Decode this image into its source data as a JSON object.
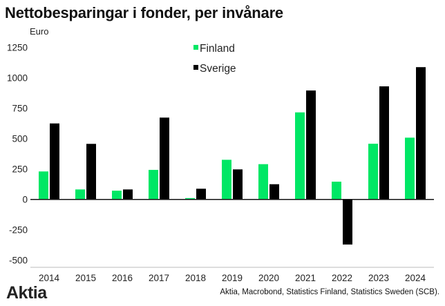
{
  "chart_data": {
    "type": "bar",
    "title": "Nettobesparingar i fonder, per invånare",
    "ylabel": "Euro",
    "xlabel": "",
    "categories": [
      "2014",
      "2015",
      "2016",
      "2017",
      "2018",
      "2019",
      "2020",
      "2021",
      "2022",
      "2023",
      "2024"
    ],
    "series": [
      {
        "name": "Finland",
        "color": "#00e765",
        "values": [
          230,
          82,
          72,
          243,
          11,
          326,
          290,
          716,
          146,
          458,
          508
        ]
      },
      {
        "name": "Sverige",
        "color": "#000000",
        "values": [
          625,
          457,
          82,
          673,
          88,
          247,
          125,
          896,
          -371,
          930,
          1088
        ]
      }
    ],
    "ylim": [
      -500,
      1250
    ],
    "yticks": [
      1250,
      1000,
      750,
      500,
      250,
      0,
      -250,
      -500
    ],
    "grid": false,
    "legend_position": "top-center"
  },
  "footer": {
    "logo": "Aktia",
    "source": "Aktia, Macrobond, Statistics Finland, Statistics Sweden (SCB)."
  }
}
